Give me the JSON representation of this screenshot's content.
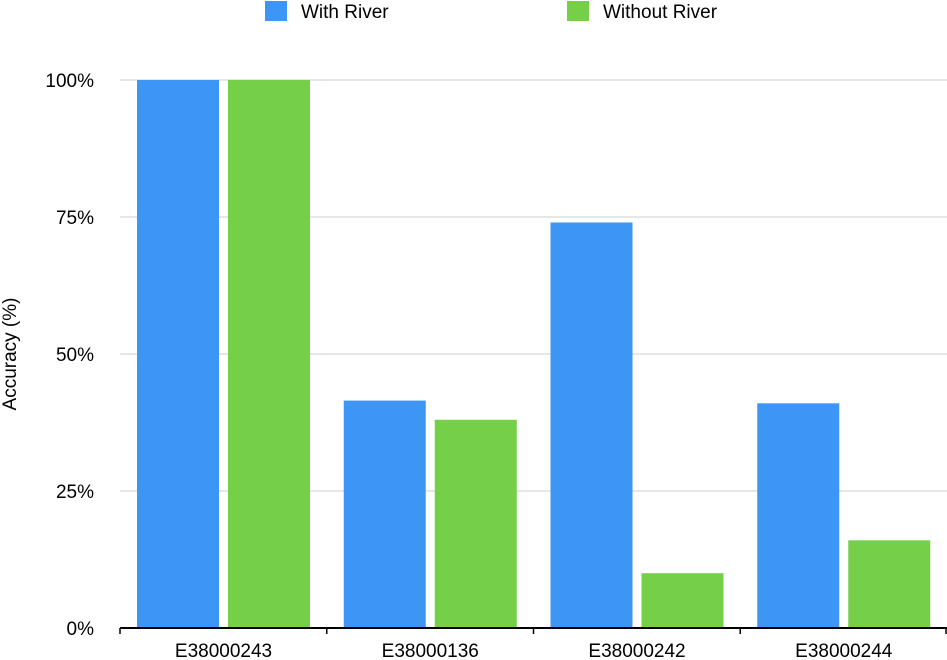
{
  "chart_data": {
    "type": "bar",
    "title": "",
    "xlabel": "",
    "ylabel": "Accuracy (%)",
    "ylim": [
      0,
      100
    ],
    "yticks": [
      0,
      25,
      50,
      75,
      100
    ],
    "ytick_labels": [
      "0%",
      "25%",
      "50%",
      "75%",
      "100%"
    ],
    "categories": [
      "E38000243",
      "E38000136",
      "E38000242",
      "E38000244"
    ],
    "series": [
      {
        "name": "With River",
        "color": "#3d95f5",
        "values": [
          100,
          41.5,
          74,
          41
        ]
      },
      {
        "name": "Without River",
        "color": "#76cf48",
        "values": [
          100,
          38,
          10,
          16
        ]
      }
    ],
    "grid": true,
    "legend_position": "top-center"
  }
}
